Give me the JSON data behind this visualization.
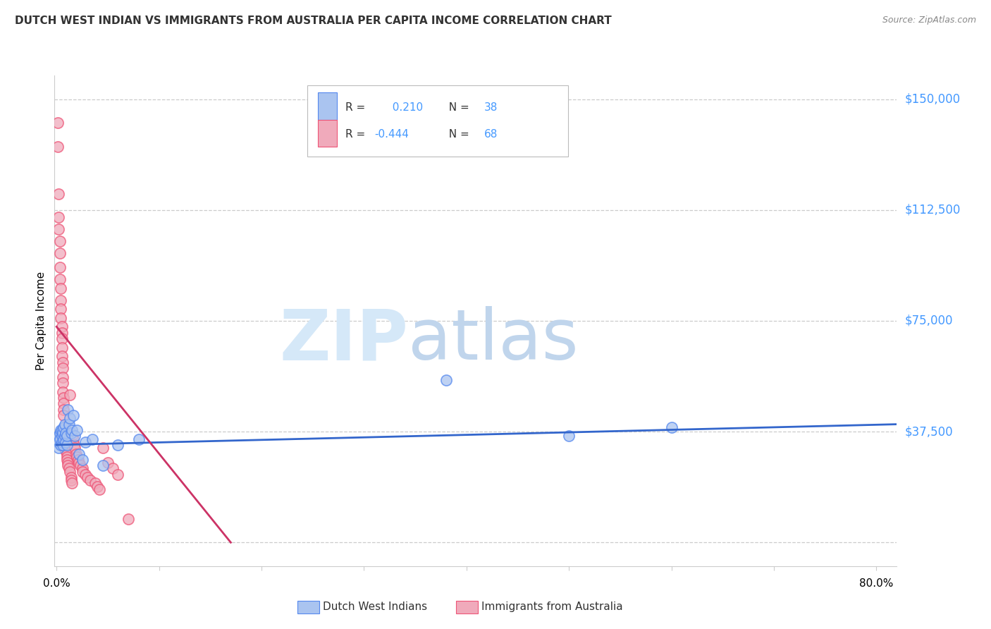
{
  "title": "DUTCH WEST INDIAN VS IMMIGRANTS FROM AUSTRALIA PER CAPITA INCOME CORRELATION CHART",
  "source": "Source: ZipAtlas.com",
  "ylabel": "Per Capita Income",
  "ytick_vals": [
    0,
    37500,
    75000,
    112500,
    150000
  ],
  "ytick_labels": [
    "",
    "$37,500",
    "$75,000",
    "$112,500",
    "$150,000"
  ],
  "ymax": 158000,
  "ymin": -8000,
  "xmin": -0.002,
  "xmax": 0.82,
  "xtick_positions": [
    0.0,
    0.1,
    0.2,
    0.3,
    0.4,
    0.5,
    0.6,
    0.7,
    0.8
  ],
  "r_blue": 0.21,
  "n_blue": 38,
  "r_pink": -0.444,
  "n_pink": 68,
  "legend_label_blue": "Dutch West Indians",
  "legend_label_pink": "Immigrants from Australia",
  "blue_color": "#aac4f0",
  "pink_color": "#f0aabb",
  "blue_edge_color": "#5588ee",
  "pink_edge_color": "#ee5577",
  "blue_line_color": "#3366cc",
  "pink_line_color": "#cc3366",
  "grid_color": "#cccccc",
  "axis_color": "#cccccc",
  "right_label_color": "#4499ff",
  "watermark_zip_color": "#d5e8f8",
  "watermark_atlas_color": "#c0d5ec",
  "blue_scatter_x": [
    0.001,
    0.002,
    0.002,
    0.003,
    0.003,
    0.004,
    0.004,
    0.005,
    0.005,
    0.005,
    0.006,
    0.006,
    0.007,
    0.007,
    0.008,
    0.008,
    0.009,
    0.009,
    0.01,
    0.01,
    0.011,
    0.012,
    0.013,
    0.014,
    0.015,
    0.016,
    0.018,
    0.02,
    0.022,
    0.025,
    0.028,
    0.035,
    0.045,
    0.06,
    0.08,
    0.38,
    0.5,
    0.6
  ],
  "blue_scatter_y": [
    34000,
    36000,
    32000,
    37000,
    35000,
    38000,
    33000,
    36000,
    34000,
    38000,
    33000,
    37000,
    35000,
    39000,
    36000,
    40000,
    34000,
    37000,
    33000,
    36000,
    45000,
    40000,
    42000,
    37000,
    38000,
    43000,
    36000,
    38000,
    30000,
    28000,
    34000,
    35000,
    26000,
    33000,
    35000,
    55000,
    36000,
    39000
  ],
  "pink_scatter_x": [
    0.001,
    0.001,
    0.002,
    0.002,
    0.002,
    0.003,
    0.003,
    0.003,
    0.003,
    0.004,
    0.004,
    0.004,
    0.004,
    0.005,
    0.005,
    0.005,
    0.005,
    0.005,
    0.006,
    0.006,
    0.006,
    0.006,
    0.006,
    0.007,
    0.007,
    0.007,
    0.007,
    0.008,
    0.008,
    0.008,
    0.008,
    0.009,
    0.009,
    0.009,
    0.009,
    0.01,
    0.01,
    0.01,
    0.011,
    0.011,
    0.012,
    0.013,
    0.013,
    0.014,
    0.014,
    0.015,
    0.015,
    0.016,
    0.017,
    0.018,
    0.019,
    0.02,
    0.021,
    0.022,
    0.023,
    0.025,
    0.025,
    0.028,
    0.03,
    0.033,
    0.038,
    0.04,
    0.042,
    0.045,
    0.05,
    0.055,
    0.06,
    0.07
  ],
  "pink_scatter_y": [
    142000,
    134000,
    118000,
    110000,
    106000,
    102000,
    98000,
    93000,
    89000,
    86000,
    82000,
    79000,
    76000,
    73000,
    71000,
    69000,
    66000,
    63000,
    61000,
    59000,
    56000,
    54000,
    51000,
    49000,
    47000,
    45000,
    43000,
    39000,
    38000,
    36000,
    35000,
    34000,
    33000,
    32000,
    31000,
    30000,
    29000,
    28000,
    27000,
    26000,
    25000,
    24000,
    50000,
    22000,
    21000,
    36000,
    20000,
    35000,
    33000,
    32000,
    30000,
    29000,
    28000,
    27000,
    26000,
    25000,
    24000,
    23000,
    22000,
    21000,
    20000,
    19000,
    18000,
    32000,
    27000,
    25000,
    23000,
    8000
  ],
  "blue_trend_x": [
    0.0,
    0.82
  ],
  "blue_trend_y": [
    33000,
    40000
  ],
  "pink_trend_x": [
    0.0,
    0.17
  ],
  "pink_trend_y": [
    73000,
    0
  ]
}
